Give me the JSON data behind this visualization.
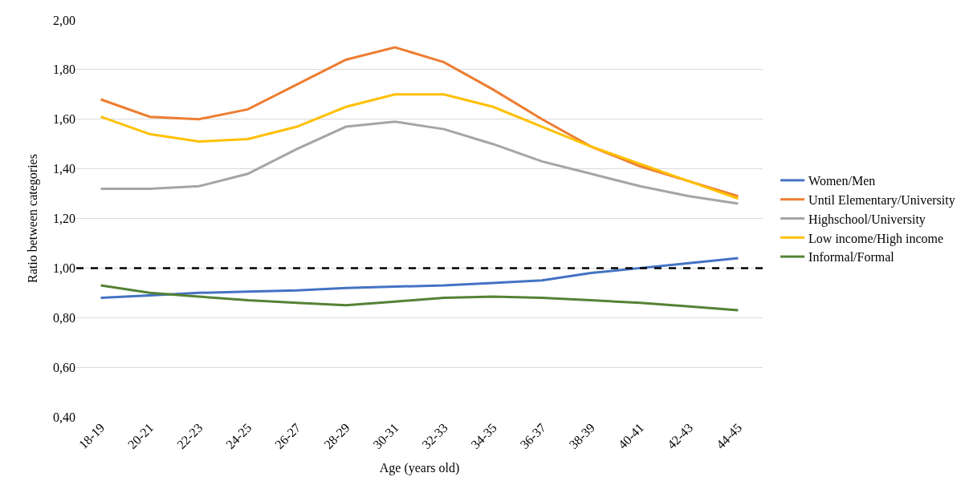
{
  "chart_data": {
    "type": "line",
    "xlabel": "Age (years old)",
    "ylabel": "Ratio between categories",
    "categories": [
      "18-19",
      "20-21",
      "22-23",
      "24-25",
      "26-27",
      "28-29",
      "30-31",
      "32-33",
      "34-35",
      "36-37",
      "38-39",
      "40-41",
      "42-43",
      "44-45"
    ],
    "series": [
      {
        "name": "Women/Men",
        "color": "#4472c4",
        "values": [
          0.88,
          0.89,
          0.9,
          0.905,
          0.91,
          0.92,
          0.925,
          0.93,
          0.94,
          0.95,
          0.98,
          1.0,
          1.02,
          1.04
        ]
      },
      {
        "name": "Until Elementary/University",
        "color": "#ed7d31",
        "values": [
          1.68,
          1.61,
          1.6,
          1.64,
          1.74,
          1.84,
          1.89,
          1.83,
          1.72,
          1.6,
          1.49,
          1.41,
          1.35,
          1.29
        ]
      },
      {
        "name": "Highschool/University",
        "color": "#a5a5a5",
        "values": [
          1.32,
          1.32,
          1.33,
          1.38,
          1.48,
          1.57,
          1.59,
          1.56,
          1.5,
          1.43,
          1.38,
          1.33,
          1.29,
          1.26
        ]
      },
      {
        "name": "Low income/High income",
        "color": "#ffc000",
        "values": [
          1.61,
          1.54,
          1.51,
          1.52,
          1.57,
          1.65,
          1.7,
          1.7,
          1.65,
          1.57,
          1.49,
          1.42,
          1.35,
          1.28
        ]
      },
      {
        "name": "Informal/Formal",
        "color": "#548235",
        "values": [
          0.93,
          0.9,
          0.885,
          0.87,
          0.86,
          0.85,
          0.865,
          0.88,
          0.885,
          0.88,
          0.87,
          0.86,
          0.845,
          0.83
        ]
      }
    ],
    "ylim": [
      0.4,
      2.0
    ],
    "yticks": [
      {
        "value": 0.4,
        "label": "0,40"
      },
      {
        "value": 0.6,
        "label": "0,60"
      },
      {
        "value": 0.8,
        "label": "0,80"
      },
      {
        "value": 1.0,
        "label": "1,00"
      },
      {
        "value": 1.2,
        "label": "1,20"
      },
      {
        "value": 1.4,
        "label": "1,40"
      },
      {
        "value": 1.6,
        "label": "1,60"
      },
      {
        "value": 1.8,
        "label": "1,80"
      },
      {
        "value": 2.0,
        "label": "2,00"
      }
    ],
    "ref_lines": [
      {
        "axis": "y",
        "value": 1.0,
        "color": "#000000",
        "line_style": "dashed"
      }
    ],
    "grid": "y",
    "legend": "right",
    "marker": "none",
    "line_style": "solid"
  }
}
